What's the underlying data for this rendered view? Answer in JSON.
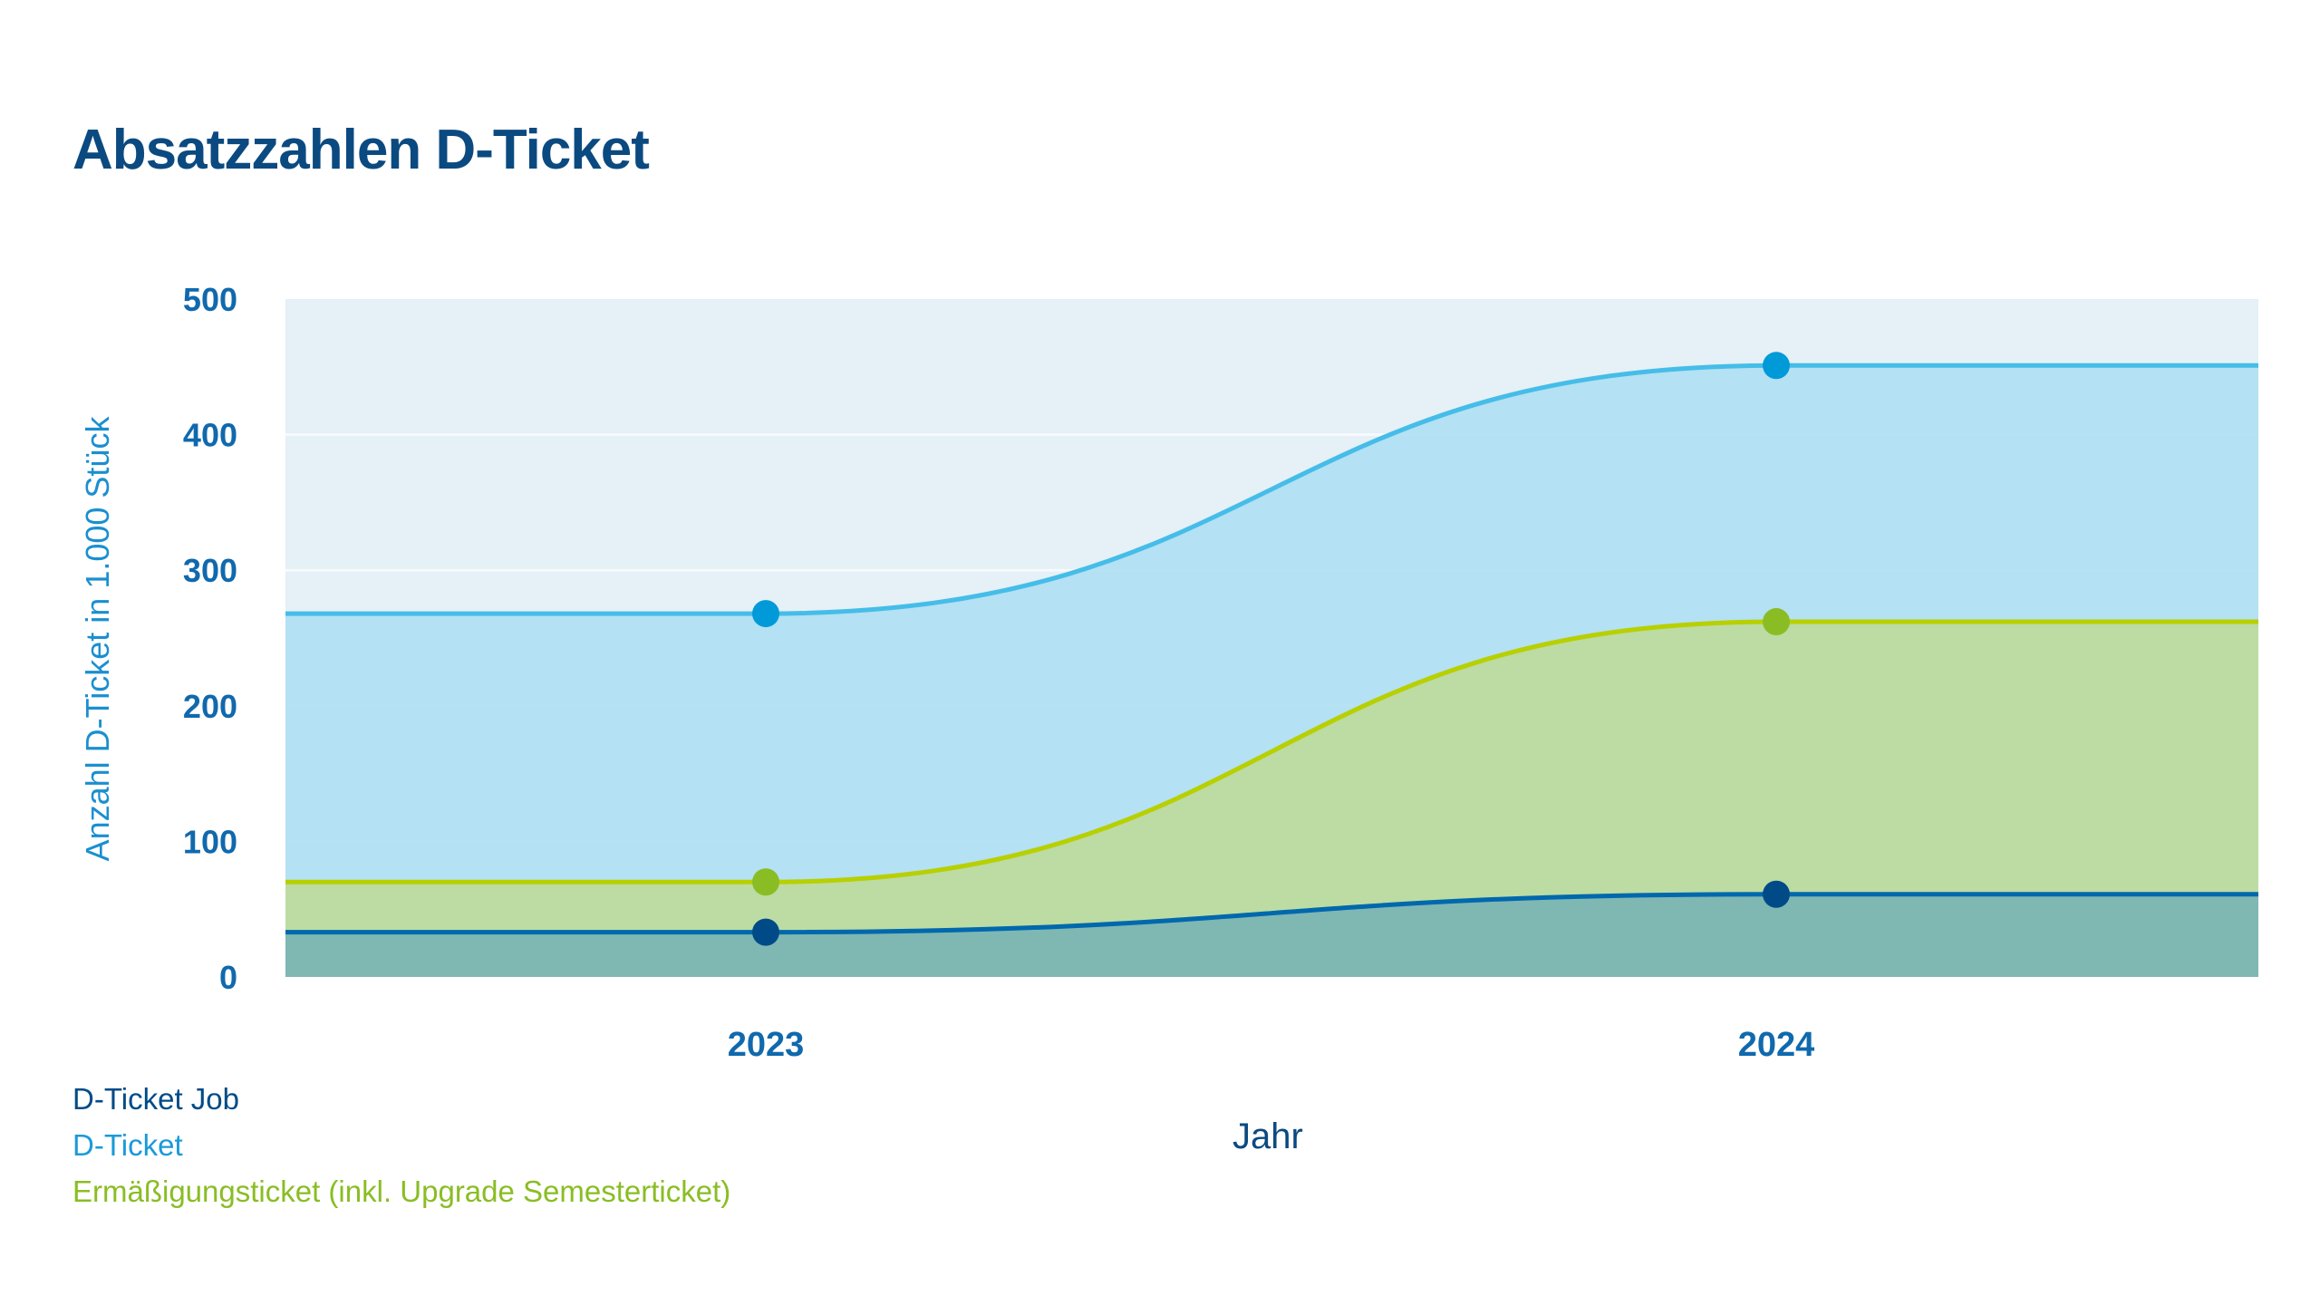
{
  "chart_data": {
    "type": "area",
    "title": "Absatzzahlen D-Ticket",
    "xlabel": "Jahr",
    "ylabel": "Anzahl D-Ticket in 1.000 Stück",
    "categories": [
      "2023",
      "2024"
    ],
    "ylim": [
      0,
      500
    ],
    "yticks": [
      "0",
      "100",
      "200",
      "300",
      "400",
      "500"
    ],
    "grid": true,
    "legend_position": "bottom-left",
    "series": [
      {
        "name": "D-Ticket",
        "values": [
          268,
          451
        ],
        "color": "#009ad9",
        "line_color": "#45bde8",
        "fill_color": "#aedff2"
      },
      {
        "name": "Ermäßigungsticket (inkl. Upgrade Semesterticket)",
        "values": [
          70,
          262
        ],
        "color": "#8abd24",
        "line_color": "#b8cf00",
        "fill_color": "#bddc9a"
      },
      {
        "name": "D-Ticket Job",
        "values": [
          33,
          61
        ],
        "color": "#004b87",
        "line_color": "#0068ad",
        "fill_color": "#78b2b5"
      }
    ]
  },
  "colors": {
    "title": "#0b4a80",
    "ticks": "#1069ad",
    "axis_title": "#1a8fd0",
    "plot_bg": "#e5f0f7"
  }
}
